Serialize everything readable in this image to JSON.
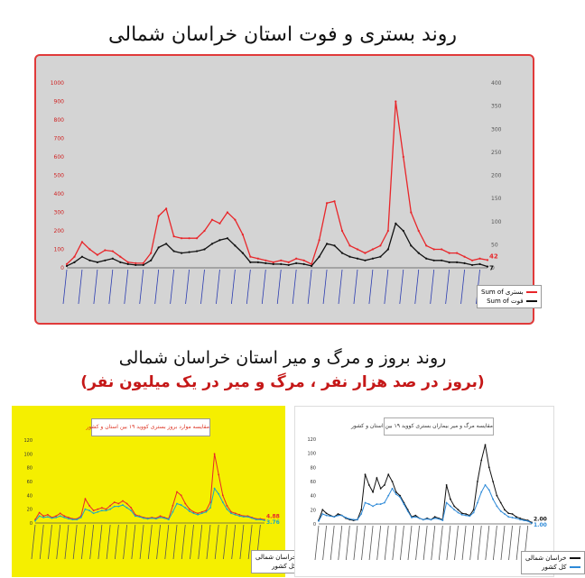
{
  "titles": {
    "main": "روند بستری و فوت استان خراسان شمالی",
    "second": "روند بروز و مرگ و میر استان خراسان شمالی",
    "second_sub": "(بروز در صد هزار نفر ، مرگ و میر در یک میلیون نفر)"
  },
  "chart_data": [
    {
      "type": "line",
      "ylim": [
        0,
        1000
      ],
      "yticks": [
        0,
        100,
        200,
        300,
        400,
        500,
        600,
        700,
        800,
        900,
        1000
      ],
      "y2ticks": [
        0,
        50,
        100,
        150,
        200,
        250,
        300,
        350,
        400
      ],
      "series": [
        {
          "name": "بستری Sum of",
          "color": "#e8262a",
          "values": [
            20,
            60,
            140,
            100,
            70,
            95,
            90,
            60,
            30,
            25,
            25,
            80,
            280,
            320,
            170,
            160,
            160,
            160,
            200,
            260,
            240,
            300,
            260,
            180,
            60,
            50,
            40,
            30,
            40,
            30,
            50,
            40,
            20,
            150,
            350,
            360,
            200,
            120,
            100,
            80,
            100,
            120,
            200,
            900,
            600,
            300,
            200,
            120,
            100,
            100,
            80,
            80,
            60,
            40,
            50,
            42
          ]
        },
        {
          "name": "فوت Sum of",
          "color": "#111111",
          "values": [
            10,
            30,
            60,
            40,
            30,
            40,
            50,
            30,
            20,
            15,
            15,
            40,
            110,
            130,
            90,
            80,
            85,
            90,
            100,
            130,
            150,
            160,
            120,
            80,
            30,
            30,
            25,
            20,
            20,
            15,
            25,
            20,
            10,
            60,
            130,
            120,
            80,
            60,
            50,
            40,
            50,
            60,
            100,
            240,
            200,
            120,
            80,
            50,
            40,
            40,
            30,
            30,
            25,
            15,
            20,
            7
          ]
        }
      ],
      "end_labels": [
        "42",
        "7"
      ]
    },
    {
      "type": "line",
      "title": "مقایسه موارد بروز بستری کووید ۱۹ بین استان و کشور",
      "ylim": [
        0,
        120
      ],
      "yticks": [
        0,
        20,
        40,
        60,
        80,
        100,
        120
      ],
      "series": [
        {
          "name": "خراسان شمالی",
          "color": "#e8262a",
          "values": [
            5,
            15,
            10,
            12,
            8,
            10,
            14,
            10,
            8,
            6,
            6,
            10,
            35,
            25,
            18,
            20,
            22,
            20,
            25,
            30,
            28,
            32,
            28,
            22,
            12,
            10,
            8,
            7,
            8,
            7,
            10,
            8,
            6,
            25,
            45,
            40,
            28,
            20,
            16,
            14,
            16,
            18,
            30,
            100,
            70,
            40,
            25,
            16,
            14,
            12,
            10,
            10,
            8,
            6,
            6,
            4.88
          ]
        },
        {
          "name": "کل کشور",
          "color": "#1aa6c6",
          "values": [
            3,
            10,
            8,
            9,
            7,
            8,
            10,
            8,
            6,
            5,
            5,
            8,
            20,
            18,
            14,
            16,
            18,
            18,
            20,
            24,
            24,
            26,
            22,
            18,
            10,
            9,
            7,
            6,
            7,
            6,
            8,
            7,
            5,
            16,
            28,
            26,
            22,
            17,
            14,
            12,
            14,
            16,
            22,
            50,
            42,
            30,
            20,
            14,
            12,
            10,
            9,
            9,
            7,
            5,
            5,
            3.76
          ]
        }
      ],
      "end_labels": [
        "4.88",
        "3.76"
      ]
    },
    {
      "type": "line",
      "title": "مقایسه مرگ و میر بیماران بستری کووید ۱۹ بین استان و کشور",
      "ylim": [
        0,
        120
      ],
      "yticks": [
        0,
        20,
        40,
        60,
        80,
        100,
        120
      ],
      "series": [
        {
          "name": "خراسان شمالی",
          "color": "#111111",
          "values": [
            5,
            20,
            15,
            12,
            10,
            14,
            12,
            8,
            6,
            5,
            6,
            20,
            70,
            55,
            45,
            65,
            50,
            55,
            70,
            60,
            45,
            40,
            30,
            20,
            10,
            12,
            8,
            6,
            8,
            6,
            10,
            8,
            6,
            55,
            35,
            25,
            20,
            15,
            14,
            12,
            20,
            60,
            90,
            112,
            80,
            60,
            40,
            30,
            20,
            15,
            14,
            10,
            8,
            6,
            5,
            2
          ]
        },
        {
          "name": "کل کشور",
          "color": "#2e8ad8",
          "values": [
            4,
            14,
            12,
            11,
            10,
            12,
            12,
            9,
            7,
            6,
            6,
            14,
            30,
            28,
            25,
            28,
            28,
            30,
            40,
            50,
            42,
            38,
            28,
            18,
            9,
            10,
            8,
            6,
            7,
            6,
            8,
            7,
            5,
            30,
            25,
            20,
            16,
            13,
            12,
            11,
            16,
            30,
            45,
            55,
            48,
            35,
            25,
            18,
            14,
            10,
            9,
            8,
            6,
            5,
            4,
            1
          ]
        }
      ],
      "end_labels": [
        "2.00",
        "1.00"
      ]
    }
  ]
}
